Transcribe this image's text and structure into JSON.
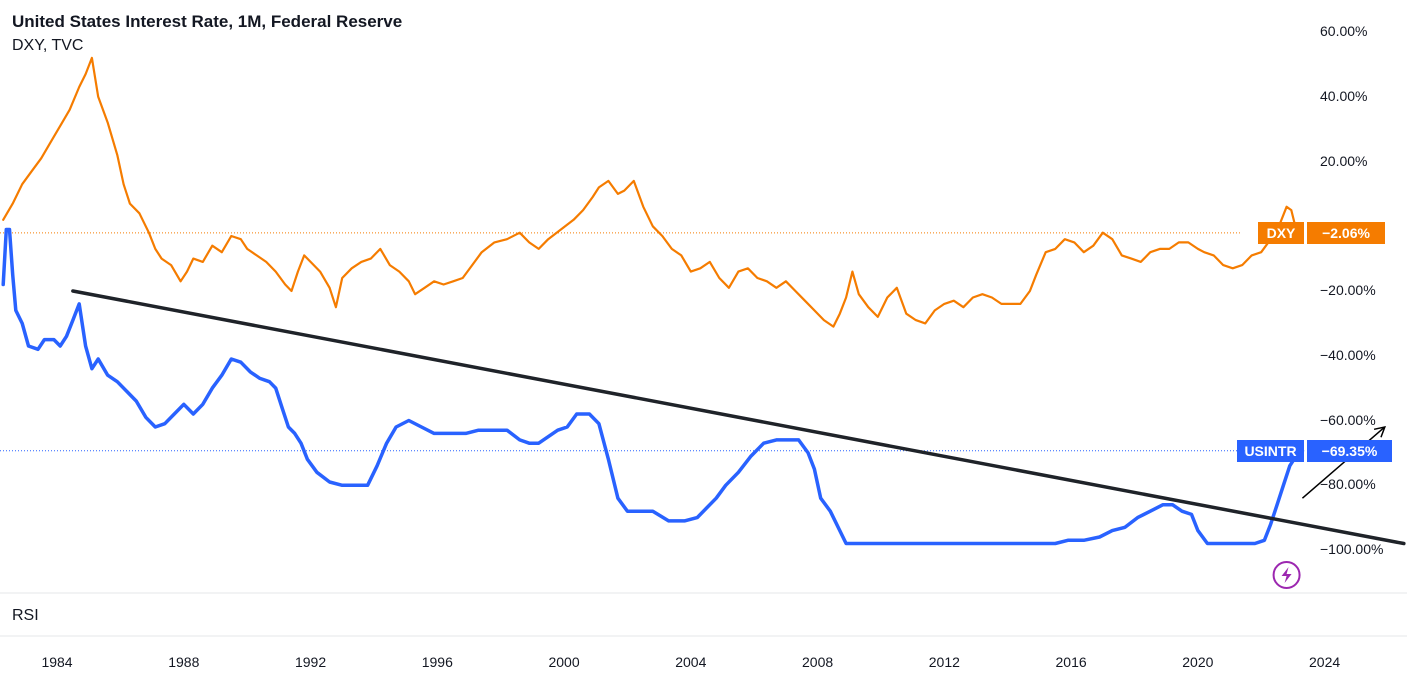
{
  "chart_data": {
    "type": "line",
    "title": "United States Interest Rate, 1M, Federal Reserve",
    "subtitle": "DXY, TVC",
    "pane_label": "RSI",
    "yaxis": {
      "ticks": [
        "60.00%",
        "40.00%",
        "20.00%",
        "−20.00%",
        "−40.00%",
        "−60.00%",
        "−80.00%",
        "−100.00%"
      ],
      "tick_values": [
        60,
        40,
        20,
        -20,
        -40,
        -60,
        -80,
        -100
      ],
      "ylim": [
        -100,
        60
      ],
      "unit": "%"
    },
    "xaxis": {
      "ticks": [
        "1984",
        "1988",
        "1992",
        "1996",
        "2000",
        "2004",
        "2008",
        "2012",
        "2016",
        "2020",
        "2024"
      ],
      "tick_values": [
        1984,
        1988,
        1992,
        1996,
        2000,
        2004,
        2008,
        2012,
        2016,
        2020,
        2024
      ],
      "xlim": [
        1982.2,
        2026.6
      ]
    },
    "series": [
      {
        "name": "DXY",
        "color": "#f57c00",
        "last_value_label": "−2.06%",
        "last_value": -2.06,
        "points": [
          [
            1982.3,
            2
          ],
          [
            1982.6,
            7
          ],
          [
            1982.9,
            13
          ],
          [
            1983.2,
            17
          ],
          [
            1983.5,
            21
          ],
          [
            1983.8,
            26
          ],
          [
            1984.1,
            31
          ],
          [
            1984.4,
            36
          ],
          [
            1984.7,
            43
          ],
          [
            1984.9,
            47
          ],
          [
            1985.1,
            52
          ],
          [
            1985.3,
            40
          ],
          [
            1985.6,
            32
          ],
          [
            1985.9,
            22
          ],
          [
            1986.1,
            13
          ],
          [
            1986.3,
            7
          ],
          [
            1986.6,
            4
          ],
          [
            1986.9,
            -2
          ],
          [
            1987.1,
            -7
          ],
          [
            1987.3,
            -10
          ],
          [
            1987.6,
            -12
          ],
          [
            1987.9,
            -17
          ],
          [
            1988.1,
            -14
          ],
          [
            1988.3,
            -10
          ],
          [
            1988.6,
            -11
          ],
          [
            1988.9,
            -6
          ],
          [
            1989.2,
            -8
          ],
          [
            1989.5,
            -3
          ],
          [
            1989.8,
            -4
          ],
          [
            1990.0,
            -7
          ],
          [
            1990.3,
            -9
          ],
          [
            1990.6,
            -11
          ],
          [
            1990.9,
            -14
          ],
          [
            1991.2,
            -18
          ],
          [
            1991.4,
            -20
          ],
          [
            1991.6,
            -14
          ],
          [
            1991.8,
            -9
          ],
          [
            1992.0,
            -11
          ],
          [
            1992.3,
            -14
          ],
          [
            1992.6,
            -19
          ],
          [
            1992.8,
            -25
          ],
          [
            1993.0,
            -16
          ],
          [
            1993.3,
            -13
          ],
          [
            1993.6,
            -11
          ],
          [
            1993.9,
            -10
          ],
          [
            1994.2,
            -7
          ],
          [
            1994.5,
            -12
          ],
          [
            1994.8,
            -14
          ],
          [
            1995.1,
            -17
          ],
          [
            1995.3,
            -21
          ],
          [
            1995.6,
            -19
          ],
          [
            1995.9,
            -17
          ],
          [
            1996.2,
            -18
          ],
          [
            1996.5,
            -17
          ],
          [
            1996.8,
            -16
          ],
          [
            1997.1,
            -12
          ],
          [
            1997.4,
            -8
          ],
          [
            1997.8,
            -5
          ],
          [
            1998.2,
            -4
          ],
          [
            1998.6,
            -2
          ],
          [
            1998.9,
            -5
          ],
          [
            1999.2,
            -7
          ],
          [
            1999.5,
            -4
          ],
          [
            1999.9,
            -1
          ],
          [
            2000.3,
            2
          ],
          [
            2000.6,
            5
          ],
          [
            2000.9,
            9
          ],
          [
            2001.1,
            12
          ],
          [
            2001.4,
            14
          ],
          [
            2001.7,
            10
          ],
          [
            2001.9,
            11
          ],
          [
            2002.2,
            14
          ],
          [
            2002.5,
            6
          ],
          [
            2002.8,
            0
          ],
          [
            2003.1,
            -3
          ],
          [
            2003.4,
            -7
          ],
          [
            2003.7,
            -9
          ],
          [
            2004.0,
            -14
          ],
          [
            2004.3,
            -13
          ],
          [
            2004.6,
            -11
          ],
          [
            2004.9,
            -16
          ],
          [
            2005.2,
            -19
          ],
          [
            2005.5,
            -14
          ],
          [
            2005.8,
            -13
          ],
          [
            2006.1,
            -16
          ],
          [
            2006.4,
            -17
          ],
          [
            2006.7,
            -19
          ],
          [
            2007.0,
            -17
          ],
          [
            2007.3,
            -20
          ],
          [
            2007.6,
            -23
          ],
          [
            2007.9,
            -26
          ],
          [
            2008.2,
            -29
          ],
          [
            2008.5,
            -31
          ],
          [
            2008.7,
            -27
          ],
          [
            2008.9,
            -22
          ],
          [
            2009.1,
            -14
          ],
          [
            2009.3,
            -21
          ],
          [
            2009.6,
            -25
          ],
          [
            2009.9,
            -28
          ],
          [
            2010.2,
            -22
          ],
          [
            2010.5,
            -19
          ],
          [
            2010.8,
            -27
          ],
          [
            2011.1,
            -29
          ],
          [
            2011.4,
            -30
          ],
          [
            2011.7,
            -26
          ],
          [
            2012.0,
            -24
          ],
          [
            2012.3,
            -23
          ],
          [
            2012.6,
            -25
          ],
          [
            2012.9,
            -22
          ],
          [
            2013.2,
            -21
          ],
          [
            2013.5,
            -22
          ],
          [
            2013.8,
            -24
          ],
          [
            2014.1,
            -24
          ],
          [
            2014.4,
            -24
          ],
          [
            2014.7,
            -20
          ],
          [
            2014.9,
            -15
          ],
          [
            2015.2,
            -8
          ],
          [
            2015.5,
            -7
          ],
          [
            2015.8,
            -4
          ],
          [
            2016.1,
            -5
          ],
          [
            2016.4,
            -8
          ],
          [
            2016.7,
            -6
          ],
          [
            2017.0,
            -2
          ],
          [
            2017.3,
            -4
          ],
          [
            2017.6,
            -9
          ],
          [
            2017.9,
            -10
          ],
          [
            2018.2,
            -11
          ],
          [
            2018.5,
            -8
          ],
          [
            2018.8,
            -7
          ],
          [
            2019.1,
            -7
          ],
          [
            2019.4,
            -5
          ],
          [
            2019.7,
            -5
          ],
          [
            2020.0,
            -7
          ],
          [
            2020.2,
            -8
          ],
          [
            2020.5,
            -9
          ],
          [
            2020.8,
            -12
          ],
          [
            2021.1,
            -13
          ],
          [
            2021.4,
            -12
          ],
          [
            2021.7,
            -9
          ],
          [
            2022.0,
            -8
          ],
          [
            2022.3,
            -4
          ],
          [
            2022.6,
            1
          ],
          [
            2022.8,
            6
          ],
          [
            2022.95,
            5
          ],
          [
            2023.1,
            -1
          ],
          [
            2023.3,
            -2.06
          ]
        ]
      },
      {
        "name": "USINTR",
        "color": "#2962ff",
        "last_value_label": "−69.35%",
        "last_value": -69.35,
        "points": [
          [
            1982.3,
            -18
          ],
          [
            1982.4,
            -1
          ],
          [
            1982.5,
            -1
          ],
          [
            1982.6,
            -15
          ],
          [
            1982.7,
            -26
          ],
          [
            1982.9,
            -30
          ],
          [
            1983.1,
            -37
          ],
          [
            1983.4,
            -38
          ],
          [
            1983.6,
            -35
          ],
          [
            1983.9,
            -35
          ],
          [
            1984.1,
            -37
          ],
          [
            1984.3,
            -34
          ],
          [
            1984.5,
            -29
          ],
          [
            1984.7,
            -24
          ],
          [
            1984.9,
            -37
          ],
          [
            1985.1,
            -44
          ],
          [
            1985.3,
            -41
          ],
          [
            1985.6,
            -46
          ],
          [
            1985.9,
            -48
          ],
          [
            1986.2,
            -51
          ],
          [
            1986.5,
            -54
          ],
          [
            1986.8,
            -59
          ],
          [
            1987.1,
            -62
          ],
          [
            1987.4,
            -61
          ],
          [
            1987.7,
            -58
          ],
          [
            1988.0,
            -55
          ],
          [
            1988.3,
            -58
          ],
          [
            1988.6,
            -55
          ],
          [
            1988.9,
            -50
          ],
          [
            1989.2,
            -46
          ],
          [
            1989.5,
            -41
          ],
          [
            1989.8,
            -42
          ],
          [
            1990.1,
            -45
          ],
          [
            1990.4,
            -47
          ],
          [
            1990.7,
            -48
          ],
          [
            1990.9,
            -50
          ],
          [
            1991.1,
            -56
          ],
          [
            1991.3,
            -62
          ],
          [
            1991.5,
            -64
          ],
          [
            1991.7,
            -67
          ],
          [
            1991.9,
            -72
          ],
          [
            1992.2,
            -76
          ],
          [
            1992.6,
            -79
          ],
          [
            1993.0,
            -80
          ],
          [
            1993.4,
            -80
          ],
          [
            1993.8,
            -80
          ],
          [
            1994.1,
            -74
          ],
          [
            1994.4,
            -67
          ],
          [
            1994.7,
            -62
          ],
          [
            1995.1,
            -60
          ],
          [
            1995.5,
            -62
          ],
          [
            1995.9,
            -64
          ],
          [
            1996.4,
            -64
          ],
          [
            1996.9,
            -64
          ],
          [
            1997.3,
            -63
          ],
          [
            1997.8,
            -63
          ],
          [
            1998.2,
            -63
          ],
          [
            1998.6,
            -66
          ],
          [
            1998.9,
            -67
          ],
          [
            1999.2,
            -67
          ],
          [
            1999.5,
            -65
          ],
          [
            1999.8,
            -63
          ],
          [
            2000.1,
            -62
          ],
          [
            2000.4,
            -58
          ],
          [
            2000.8,
            -58
          ],
          [
            2001.1,
            -61
          ],
          [
            2001.4,
            -72
          ],
          [
            2001.7,
            -84
          ],
          [
            2002.0,
            -88
          ],
          [
            2002.4,
            -88
          ],
          [
            2002.8,
            -88
          ],
          [
            2003.3,
            -91
          ],
          [
            2003.8,
            -91
          ],
          [
            2004.2,
            -90
          ],
          [
            2004.5,
            -87
          ],
          [
            2004.8,
            -84
          ],
          [
            2005.1,
            -80
          ],
          [
            2005.5,
            -76
          ],
          [
            2005.9,
            -71
          ],
          [
            2006.3,
            -67
          ],
          [
            2006.7,
            -66
          ],
          [
            2007.1,
            -66
          ],
          [
            2007.4,
            -66
          ],
          [
            2007.7,
            -70
          ],
          [
            2007.9,
            -75
          ],
          [
            2008.1,
            -84
          ],
          [
            2008.4,
            -88
          ],
          [
            2008.7,
            -94
          ],
          [
            2008.9,
            -98
          ],
          [
            2009.5,
            -98
          ],
          [
            2010.5,
            -98
          ],
          [
            2011.5,
            -98
          ],
          [
            2012.5,
            -98
          ],
          [
            2013.5,
            -98
          ],
          [
            2014.5,
            -98
          ],
          [
            2015.5,
            -98
          ],
          [
            2015.9,
            -97
          ],
          [
            2016.4,
            -97
          ],
          [
            2016.9,
            -96
          ],
          [
            2017.3,
            -94
          ],
          [
            2017.7,
            -93
          ],
          [
            2018.1,
            -90
          ],
          [
            2018.5,
            -88
          ],
          [
            2018.9,
            -86
          ],
          [
            2019.2,
            -86
          ],
          [
            2019.5,
            -88
          ],
          [
            2019.8,
            -89
          ],
          [
            2020.0,
            -94
          ],
          [
            2020.3,
            -98
          ],
          [
            2020.8,
            -98
          ],
          [
            2021.3,
            -98
          ],
          [
            2021.8,
            -98
          ],
          [
            2022.1,
            -97
          ],
          [
            2022.3,
            -92
          ],
          [
            2022.5,
            -86
          ],
          [
            2022.7,
            -80
          ],
          [
            2022.9,
            -74
          ],
          [
            2023.1,
            -71
          ],
          [
            2023.3,
            -69.35
          ]
        ]
      }
    ],
    "reference_lines": [
      {
        "series": "DXY",
        "value": -2.06,
        "style": "dotted",
        "color": "#f57c00"
      },
      {
        "series": "USINTR",
        "value": -69.35,
        "style": "dotted",
        "color": "#2962ff"
      }
    ],
    "annotations": [
      {
        "type": "trend_line",
        "color": "#1f2329",
        "from": [
          1984.5,
          -20
        ],
        "to": [
          2026.5,
          -98
        ]
      },
      {
        "type": "arrow",
        "color": "#000000",
        "from": [
          2023.3,
          -84
        ],
        "to": [
          2025.9,
          -62
        ]
      },
      {
        "type": "icon",
        "icon": "lightning-bolt-icon",
        "color": "#9c27b0",
        "x": 2022.8,
        "pane": "rsi"
      }
    ],
    "grid": false,
    "legend": "right-axis-badges"
  }
}
